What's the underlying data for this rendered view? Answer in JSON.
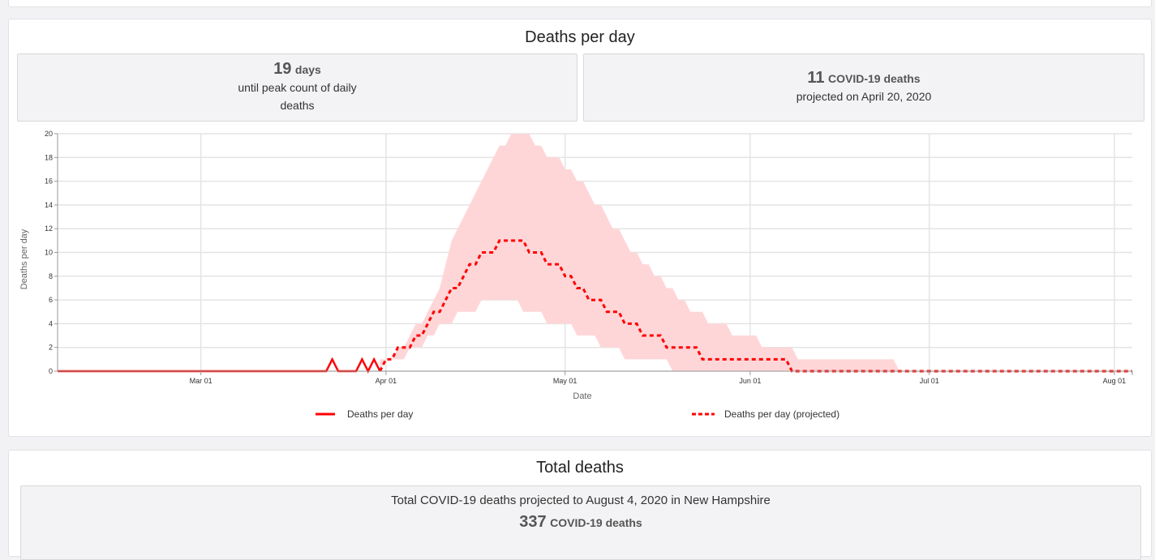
{
  "panel": {
    "title": "Deaths per day"
  },
  "stats": [
    {
      "value": "19",
      "unit": "days",
      "text_lines": [
        "until peak count of daily",
        "deaths"
      ]
    },
    {
      "value": "11",
      "unit": "COVID-19 deaths",
      "text_lines": [
        "projected on April 20, 2020"
      ]
    }
  ],
  "total_panel": {
    "title": "Total deaths",
    "text": "Total COVID-19 deaths projected to August 4, 2020 in New Hampshire",
    "value": "337",
    "unit": "COVID-19 deaths"
  },
  "chart_data": {
    "type": "line",
    "xlabel": "Date",
    "ylabel": "Deaths per day",
    "xlim": [
      "2020-02-06",
      "2020-08-04"
    ],
    "ylim": [
      0,
      20
    ],
    "grid": true,
    "legend_placement": "bottom",
    "x_ticks": [
      {
        "date": "2020-03-01",
        "label": "Mar 01"
      },
      {
        "date": "2020-04-01",
        "label": "Apr 01"
      },
      {
        "date": "2020-05-01",
        "label": "May 01"
      },
      {
        "date": "2020-06-01",
        "label": "Jun 01"
      },
      {
        "date": "2020-07-01",
        "label": "Jul 01"
      },
      {
        "date": "2020-08-01",
        "label": "Aug 01"
      }
    ],
    "y_ticks": [
      0,
      2,
      4,
      6,
      8,
      10,
      12,
      14,
      16,
      18,
      20
    ],
    "colors": {
      "line": "#ff0000",
      "band": "#ffd6d8",
      "grid": "#e4e4e4"
    },
    "series": [
      {
        "name": "Deaths per day",
        "style": "solid",
        "points": [
          [
            "2020-02-06",
            0
          ],
          [
            "2020-03-22",
            0
          ],
          [
            "2020-03-23",
            1
          ],
          [
            "2020-03-24",
            0
          ],
          [
            "2020-03-27",
            0
          ],
          [
            "2020-03-28",
            1
          ],
          [
            "2020-03-29",
            0
          ],
          [
            "2020-03-30",
            1
          ],
          [
            "2020-03-31",
            0
          ]
        ]
      },
      {
        "name": "Deaths per day (projected)",
        "style": "dashed",
        "points": [
          [
            "2020-03-31",
            0
          ],
          [
            "2020-04-01",
            1
          ],
          [
            "2020-04-02",
            1
          ],
          [
            "2020-04-03",
            2
          ],
          [
            "2020-04-05",
            2
          ],
          [
            "2020-04-06",
            3
          ],
          [
            "2020-04-07",
            3
          ],
          [
            "2020-04-08",
            4
          ],
          [
            "2020-04-09",
            5
          ],
          [
            "2020-04-10",
            5
          ],
          [
            "2020-04-11",
            6
          ],
          [
            "2020-04-12",
            7
          ],
          [
            "2020-04-13",
            7
          ],
          [
            "2020-04-14",
            8
          ],
          [
            "2020-04-15",
            9
          ],
          [
            "2020-04-16",
            9
          ],
          [
            "2020-04-17",
            10
          ],
          [
            "2020-04-19",
            10
          ],
          [
            "2020-04-20",
            11
          ],
          [
            "2020-04-24",
            11
          ],
          [
            "2020-04-25",
            10
          ],
          [
            "2020-04-27",
            10
          ],
          [
            "2020-04-28",
            9
          ],
          [
            "2020-04-30",
            9
          ],
          [
            "2020-05-01",
            8
          ],
          [
            "2020-05-02",
            8
          ],
          [
            "2020-05-03",
            7
          ],
          [
            "2020-05-04",
            7
          ],
          [
            "2020-05-05",
            6
          ],
          [
            "2020-05-07",
            6
          ],
          [
            "2020-05-08",
            5
          ],
          [
            "2020-05-10",
            5
          ],
          [
            "2020-05-11",
            4
          ],
          [
            "2020-05-13",
            4
          ],
          [
            "2020-05-14",
            3
          ],
          [
            "2020-05-17",
            3
          ],
          [
            "2020-05-18",
            2
          ],
          [
            "2020-05-23",
            2
          ],
          [
            "2020-05-24",
            1
          ],
          [
            "2020-06-07",
            1
          ],
          [
            "2020-06-08",
            0
          ],
          [
            "2020-08-04",
            0
          ]
        ]
      }
    ],
    "band": {
      "upper": [
        [
          "2020-03-31",
          1
        ],
        [
          "2020-04-02",
          1
        ],
        [
          "2020-04-03",
          2
        ],
        [
          "2020-04-04",
          2
        ],
        [
          "2020-04-05",
          3
        ],
        [
          "2020-04-06",
          4
        ],
        [
          "2020-04-07",
          4
        ],
        [
          "2020-04-08",
          5
        ],
        [
          "2020-04-09",
          6
        ],
        [
          "2020-04-10",
          7
        ],
        [
          "2020-04-11",
          9
        ],
        [
          "2020-04-12",
          11
        ],
        [
          "2020-04-13",
          12
        ],
        [
          "2020-04-14",
          13
        ],
        [
          "2020-04-15",
          14
        ],
        [
          "2020-04-16",
          15
        ],
        [
          "2020-04-17",
          16
        ],
        [
          "2020-04-18",
          17
        ],
        [
          "2020-04-19",
          18
        ],
        [
          "2020-04-20",
          19
        ],
        [
          "2020-04-21",
          19
        ],
        [
          "2020-04-22",
          20
        ],
        [
          "2020-04-25",
          20
        ],
        [
          "2020-04-26",
          19
        ],
        [
          "2020-04-27",
          19
        ],
        [
          "2020-04-28",
          18
        ],
        [
          "2020-04-30",
          18
        ],
        [
          "2020-05-01",
          17
        ],
        [
          "2020-05-02",
          17
        ],
        [
          "2020-05-03",
          16
        ],
        [
          "2020-05-04",
          16
        ],
        [
          "2020-05-05",
          15
        ],
        [
          "2020-05-06",
          14
        ],
        [
          "2020-05-07",
          14
        ],
        [
          "2020-05-08",
          13
        ],
        [
          "2020-05-09",
          12
        ],
        [
          "2020-05-10",
          12
        ],
        [
          "2020-05-11",
          11
        ],
        [
          "2020-05-12",
          10
        ],
        [
          "2020-05-13",
          10
        ],
        [
          "2020-05-14",
          9
        ],
        [
          "2020-05-15",
          9
        ],
        [
          "2020-05-16",
          8
        ],
        [
          "2020-05-17",
          8
        ],
        [
          "2020-05-18",
          7
        ],
        [
          "2020-05-19",
          7
        ],
        [
          "2020-05-20",
          6
        ],
        [
          "2020-05-21",
          6
        ],
        [
          "2020-05-22",
          5
        ],
        [
          "2020-05-24",
          5
        ],
        [
          "2020-05-25",
          4
        ],
        [
          "2020-05-28",
          4
        ],
        [
          "2020-05-29",
          3
        ],
        [
          "2020-06-02",
          3
        ],
        [
          "2020-06-03",
          2
        ],
        [
          "2020-06-08",
          2
        ],
        [
          "2020-06-09",
          1
        ],
        [
          "2020-06-25",
          1
        ],
        [
          "2020-06-26",
          0
        ],
        [
          "2020-08-04",
          0
        ]
      ],
      "lower": [
        [
          "2020-03-31",
          0
        ],
        [
          "2020-04-01",
          1
        ],
        [
          "2020-04-04",
          1
        ],
        [
          "2020-04-05",
          2
        ],
        [
          "2020-04-07",
          2
        ],
        [
          "2020-04-08",
          3
        ],
        [
          "2020-04-09",
          3
        ],
        [
          "2020-04-10",
          4
        ],
        [
          "2020-04-12",
          4
        ],
        [
          "2020-04-13",
          5
        ],
        [
          "2020-04-16",
          5
        ],
        [
          "2020-04-17",
          6
        ],
        [
          "2020-04-23",
          6
        ],
        [
          "2020-04-24",
          5
        ],
        [
          "2020-04-27",
          5
        ],
        [
          "2020-04-28",
          4
        ],
        [
          "2020-05-02",
          4
        ],
        [
          "2020-05-03",
          3
        ],
        [
          "2020-05-06",
          3
        ],
        [
          "2020-05-07",
          2
        ],
        [
          "2020-05-10",
          2
        ],
        [
          "2020-05-11",
          1
        ],
        [
          "2020-05-18",
          1
        ],
        [
          "2020-05-19",
          0
        ],
        [
          "2020-08-04",
          0
        ]
      ]
    }
  }
}
